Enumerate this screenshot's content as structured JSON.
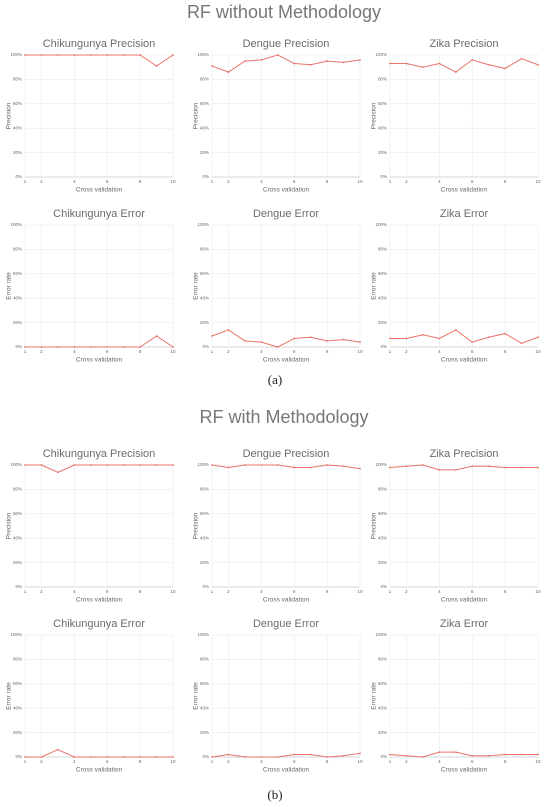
{
  "sections": [
    {
      "title": "RF without Methodology",
      "label": "(a)"
    },
    {
      "title": "RF with Methodology",
      "label": "(b)"
    }
  ],
  "chart_data": [
    {
      "type": "line",
      "title": "Chikungunya Precision",
      "x_label": "Cross validation",
      "y_label": "Precision",
      "x": [
        1,
        2,
        3,
        4,
        5,
        6,
        7,
        8,
        9,
        10
      ],
      "values": [
        100,
        100,
        100,
        100,
        100,
        100,
        100,
        100,
        91,
        100
      ],
      "color": "#e8736a",
      "xlim": [
        1,
        10
      ],
      "xticks": [
        1,
        2,
        4,
        6,
        8,
        10
      ],
      "ylim": [
        0,
        100
      ],
      "yticks": [
        {
          "value": 0,
          "label": "0%"
        },
        {
          "value": 20,
          "label": "20%"
        },
        {
          "value": 40,
          "label": "40%"
        },
        {
          "value": 60,
          "label": "60%"
        },
        {
          "value": 80,
          "label": "80%"
        },
        {
          "value": 100,
          "label": "100%"
        }
      ],
      "grid": true
    },
    {
      "type": "line",
      "title": "Dengue Precision",
      "x_label": "Cross validation",
      "y_label": "Precision",
      "x": [
        1,
        2,
        3,
        4,
        5,
        6,
        7,
        8,
        9,
        10
      ],
      "values": [
        91,
        86,
        95,
        96,
        100,
        93,
        92,
        95,
        94,
        96
      ],
      "color": "#e8736a",
      "xlim": [
        1,
        10
      ],
      "xticks": [
        1,
        2,
        4,
        6,
        8,
        10
      ],
      "ylim": [
        0,
        100
      ],
      "yticks": [
        {
          "value": 0,
          "label": "0%"
        },
        {
          "value": 20,
          "label": "20%"
        },
        {
          "value": 40,
          "label": "40%"
        },
        {
          "value": 60,
          "label": "60%"
        },
        {
          "value": 80,
          "label": "80%"
        },
        {
          "value": 100,
          "label": "100%"
        }
      ],
      "grid": true
    },
    {
      "type": "line",
      "title": "Zika Precision",
      "x_label": "Cross validation",
      "y_label": "Precision",
      "x": [
        1,
        2,
        3,
        4,
        5,
        6,
        7,
        8,
        9,
        10
      ],
      "values": [
        93,
        93,
        90,
        93,
        86,
        96,
        92,
        89,
        97,
        92
      ],
      "color": "#e8736a",
      "xlim": [
        1,
        10
      ],
      "xticks": [
        1,
        2,
        4,
        6,
        8,
        10
      ],
      "ylim": [
        0,
        100
      ],
      "yticks": [
        {
          "value": 0,
          "label": "0%"
        },
        {
          "value": 20,
          "label": "20%"
        },
        {
          "value": 40,
          "label": "40%"
        },
        {
          "value": 60,
          "label": "60%"
        },
        {
          "value": 80,
          "label": "80%"
        },
        {
          "value": 100,
          "label": "100%"
        }
      ],
      "grid": true
    },
    {
      "type": "line",
      "title": "Chikungunya Error",
      "x_label": "Cross validation",
      "y_label": "Error rate",
      "x": [
        1,
        2,
        3,
        4,
        5,
        6,
        7,
        8,
        9,
        10
      ],
      "values": [
        0,
        0,
        0,
        0,
        0,
        0,
        0,
        0,
        9,
        0
      ],
      "color": "#e8736a",
      "xlim": [
        1,
        10
      ],
      "xticks": [
        1,
        2,
        4,
        6,
        8,
        10
      ],
      "ylim": [
        0,
        100
      ],
      "yticks": [
        {
          "value": 0,
          "label": "0%"
        },
        {
          "value": 20,
          "label": "20%"
        },
        {
          "value": 40,
          "label": "40%"
        },
        {
          "value": 60,
          "label": "60%"
        },
        {
          "value": 80,
          "label": "80%"
        },
        {
          "value": 100,
          "label": "100%"
        }
      ],
      "grid": true
    },
    {
      "type": "line",
      "title": "Dengue Error",
      "x_label": "Cross validation",
      "y_label": "Error rate",
      "x": [
        1,
        2,
        3,
        4,
        5,
        6,
        7,
        8,
        9,
        10
      ],
      "values": [
        9,
        14,
        5,
        4,
        0,
        7,
        8,
        5,
        6,
        4
      ],
      "color": "#e8736a",
      "xlim": [
        1,
        10
      ],
      "xticks": [
        1,
        2,
        4,
        6,
        8,
        10
      ],
      "ylim": [
        0,
        100
      ],
      "yticks": [
        {
          "value": 0,
          "label": "0%"
        },
        {
          "value": 20,
          "label": "20%"
        },
        {
          "value": 40,
          "label": "40%"
        },
        {
          "value": 60,
          "label": "60%"
        },
        {
          "value": 80,
          "label": "80%"
        },
        {
          "value": 100,
          "label": "100%"
        }
      ],
      "grid": true
    },
    {
      "type": "line",
      "title": "Zika Error",
      "x_label": "Cross validation",
      "y_label": "Error rate",
      "x": [
        1,
        2,
        3,
        4,
        5,
        6,
        7,
        8,
        9,
        10
      ],
      "values": [
        7,
        7,
        10,
        7,
        14,
        4,
        8,
        11,
        3,
        8
      ],
      "color": "#e8736a",
      "xlim": [
        1,
        10
      ],
      "xticks": [
        1,
        2,
        4,
        6,
        8,
        10
      ],
      "ylim": [
        0,
        100
      ],
      "yticks": [
        {
          "value": 0,
          "label": "0%"
        },
        {
          "value": 20,
          "label": "20%"
        },
        {
          "value": 40,
          "label": "40%"
        },
        {
          "value": 60,
          "label": "60%"
        },
        {
          "value": 80,
          "label": "80%"
        },
        {
          "value": 100,
          "label": "100%"
        }
      ],
      "grid": true
    },
    {
      "type": "line",
      "title": "Chikungunya Precision",
      "x_label": "Cross validation",
      "y_label": "Precision",
      "x": [
        1,
        2,
        3,
        4,
        5,
        6,
        7,
        8,
        9,
        10
      ],
      "values": [
        100,
        100,
        94,
        100,
        100,
        100,
        100,
        100,
        100,
        100
      ],
      "color": "#e8736a",
      "xlim": [
        1,
        10
      ],
      "xticks": [
        1,
        2,
        4,
        6,
        8,
        10
      ],
      "ylim": [
        0,
        100
      ],
      "yticks": [
        {
          "value": 0,
          "label": "0%"
        },
        {
          "value": 20,
          "label": "20%"
        },
        {
          "value": 40,
          "label": "40%"
        },
        {
          "value": 60,
          "label": "60%"
        },
        {
          "value": 80,
          "label": "80%"
        },
        {
          "value": 100,
          "label": "100%"
        }
      ],
      "grid": true
    },
    {
      "type": "line",
      "title": "Dengue Precision",
      "x_label": "Cross validation",
      "y_label": "Precision",
      "x": [
        1,
        2,
        3,
        4,
        5,
        6,
        7,
        8,
        9,
        10
      ],
      "values": [
        100,
        98,
        100,
        100,
        100,
        98,
        98,
        100,
        99,
        97
      ],
      "color": "#e8736a",
      "xlim": [
        1,
        10
      ],
      "xticks": [
        1,
        2,
        4,
        6,
        8,
        10
      ],
      "ylim": [
        0,
        100
      ],
      "yticks": [
        {
          "value": 0,
          "label": "0%"
        },
        {
          "value": 20,
          "label": "20%"
        },
        {
          "value": 40,
          "label": "40%"
        },
        {
          "value": 60,
          "label": "60%"
        },
        {
          "value": 80,
          "label": "80%"
        },
        {
          "value": 100,
          "label": "100%"
        }
      ],
      "grid": true
    },
    {
      "type": "line",
      "title": "Zika Precision",
      "x_label": "Cross validation",
      "y_label": "Precision",
      "x": [
        1,
        2,
        3,
        4,
        5,
        6,
        7,
        8,
        9,
        10
      ],
      "values": [
        98,
        99,
        100,
        96,
        96,
        99,
        99,
        98,
        98,
        98
      ],
      "color": "#e8736a",
      "xlim": [
        1,
        10
      ],
      "xticks": [
        1,
        2,
        4,
        6,
        8,
        10
      ],
      "ylim": [
        0,
        100
      ],
      "yticks": [
        {
          "value": 0,
          "label": "0%"
        },
        {
          "value": 20,
          "label": "20%"
        },
        {
          "value": 40,
          "label": "40%"
        },
        {
          "value": 60,
          "label": "60%"
        },
        {
          "value": 80,
          "label": "80%"
        },
        {
          "value": 100,
          "label": "100%"
        }
      ],
      "grid": true
    },
    {
      "type": "line",
      "title": "Chikungunya Error",
      "x_label": "Cross validation",
      "y_label": "Error rate",
      "x": [
        1,
        2,
        3,
        4,
        5,
        6,
        7,
        8,
        9,
        10
      ],
      "values": [
        0,
        0,
        6,
        0,
        0,
        0,
        0,
        0,
        0,
        0
      ],
      "color": "#e8736a",
      "xlim": [
        1,
        10
      ],
      "xticks": [
        1,
        2,
        4,
        6,
        8,
        10
      ],
      "ylim": [
        0,
        100
      ],
      "yticks": [
        {
          "value": 0,
          "label": "0%"
        },
        {
          "value": 20,
          "label": "20%"
        },
        {
          "value": 40,
          "label": "40%"
        },
        {
          "value": 60,
          "label": "60%"
        },
        {
          "value": 80,
          "label": "80%"
        },
        {
          "value": 100,
          "label": "100%"
        }
      ],
      "grid": true
    },
    {
      "type": "line",
      "title": "Dengue Error",
      "x_label": "Cross validation",
      "y_label": "Error rate",
      "x": [
        1,
        2,
        3,
        4,
        5,
        6,
        7,
        8,
        9,
        10
      ],
      "values": [
        0,
        2,
        0,
        0,
        0,
        2,
        2,
        0,
        1,
        3
      ],
      "color": "#e8736a",
      "xlim": [
        1,
        10
      ],
      "xticks": [
        1,
        2,
        4,
        6,
        8,
        10
      ],
      "ylim": [
        0,
        100
      ],
      "yticks": [
        {
          "value": 0,
          "label": "0%"
        },
        {
          "value": 20,
          "label": "20%"
        },
        {
          "value": 40,
          "label": "40%"
        },
        {
          "value": 60,
          "label": "60%"
        },
        {
          "value": 80,
          "label": "80%"
        },
        {
          "value": 100,
          "label": "100%"
        }
      ],
      "grid": true
    },
    {
      "type": "line",
      "title": "Zika Error",
      "x_label": "Cross validation",
      "y_label": "Error rate",
      "x": [
        1,
        2,
        3,
        4,
        5,
        6,
        7,
        8,
        9,
        10
      ],
      "values": [
        2,
        1,
        0,
        4,
        4,
        1,
        1,
        2,
        2,
        2
      ],
      "color": "#e8736a",
      "xlim": [
        1,
        10
      ],
      "xticks": [
        1,
        2,
        4,
        6,
        8,
        10
      ],
      "ylim": [
        0,
        100
      ],
      "yticks": [
        {
          "value": 0,
          "label": "0%"
        },
        {
          "value": 20,
          "label": "20%"
        },
        {
          "value": 40,
          "label": "40%"
        },
        {
          "value": 60,
          "label": "60%"
        },
        {
          "value": 80,
          "label": "80%"
        },
        {
          "value": 100,
          "label": "100%"
        }
      ],
      "grid": true
    }
  ]
}
